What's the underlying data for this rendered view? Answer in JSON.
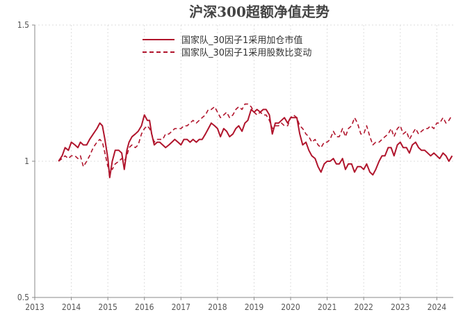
{
  "chart_data": {
    "type": "line",
    "title": "沪深300超额净值走势",
    "xlabel": "",
    "ylabel": "",
    "xlim": [
      2013.0,
      2024.45
    ],
    "ylim": [
      0.5,
      1.5
    ],
    "grid": true,
    "legend_position": "top-center",
    "x_ticks": [
      2013,
      2014,
      2015,
      2016,
      2017,
      2018,
      2019,
      2020,
      2021,
      2022,
      2023,
      2024
    ],
    "y_ticks": [
      0.5,
      1,
      1.5
    ],
    "y_tick_labels": [
      "0.5",
      "1",
      "1.5"
    ],
    "colors": {
      "series": "#b0142c",
      "axis": "#888888",
      "grid": "#dddddd"
    },
    "series": [
      {
        "name": "国家队_30因子1采用加仓市值",
        "style": "solid",
        "points": [
          [
            2013.65,
            1.0
          ],
          [
            2013.75,
            1.02
          ],
          [
            2013.83,
            1.05
          ],
          [
            2013.92,
            1.04
          ],
          [
            2014.0,
            1.07
          ],
          [
            2014.1,
            1.06
          ],
          [
            2014.18,
            1.05
          ],
          [
            2014.25,
            1.07
          ],
          [
            2014.33,
            1.06
          ],
          [
            2014.42,
            1.06
          ],
          [
            2014.5,
            1.08
          ],
          [
            2014.6,
            1.1
          ],
          [
            2014.7,
            1.12
          ],
          [
            2014.78,
            1.14
          ],
          [
            2014.85,
            1.13
          ],
          [
            2014.92,
            1.08
          ],
          [
            2015.0,
            1.01
          ],
          [
            2015.05,
            0.94
          ],
          [
            2015.12,
            1.0
          ],
          [
            2015.2,
            1.04
          ],
          [
            2015.3,
            1.04
          ],
          [
            2015.38,
            1.03
          ],
          [
            2015.45,
            0.97
          ],
          [
            2015.52,
            1.04
          ],
          [
            2015.58,
            1.07
          ],
          [
            2015.66,
            1.09
          ],
          [
            2015.75,
            1.1
          ],
          [
            2015.83,
            1.11
          ],
          [
            2015.92,
            1.13
          ],
          [
            2016.0,
            1.17
          ],
          [
            2016.08,
            1.15
          ],
          [
            2016.14,
            1.15
          ],
          [
            2016.2,
            1.1
          ],
          [
            2016.27,
            1.06
          ],
          [
            2016.35,
            1.07
          ],
          [
            2016.42,
            1.07
          ],
          [
            2016.5,
            1.06
          ],
          [
            2016.58,
            1.05
          ],
          [
            2016.67,
            1.06
          ],
          [
            2016.75,
            1.07
          ],
          [
            2016.83,
            1.08
          ],
          [
            2016.92,
            1.07
          ],
          [
            2017.0,
            1.06
          ],
          [
            2017.08,
            1.08
          ],
          [
            2017.17,
            1.08
          ],
          [
            2017.25,
            1.07
          ],
          [
            2017.33,
            1.08
          ],
          [
            2017.42,
            1.07
          ],
          [
            2017.5,
            1.08
          ],
          [
            2017.58,
            1.08
          ],
          [
            2017.67,
            1.1
          ],
          [
            2017.75,
            1.12
          ],
          [
            2017.83,
            1.14
          ],
          [
            2017.92,
            1.13
          ],
          [
            2018.0,
            1.12
          ],
          [
            2018.08,
            1.09
          ],
          [
            2018.17,
            1.12
          ],
          [
            2018.25,
            1.11
          ],
          [
            2018.33,
            1.09
          ],
          [
            2018.42,
            1.1
          ],
          [
            2018.5,
            1.12
          ],
          [
            2018.58,
            1.13
          ],
          [
            2018.67,
            1.11
          ],
          [
            2018.75,
            1.14
          ],
          [
            2018.83,
            1.15
          ],
          [
            2018.92,
            1.19
          ],
          [
            2019.0,
            1.18
          ],
          [
            2019.08,
            1.19
          ],
          [
            2019.17,
            1.18
          ],
          [
            2019.25,
            1.19
          ],
          [
            2019.33,
            1.19
          ],
          [
            2019.42,
            1.17
          ],
          [
            2019.5,
            1.1
          ],
          [
            2019.58,
            1.14
          ],
          [
            2019.67,
            1.14
          ],
          [
            2019.75,
            1.15
          ],
          [
            2019.83,
            1.16
          ],
          [
            2019.92,
            1.14
          ],
          [
            2020.0,
            1.16
          ],
          [
            2020.08,
            1.16
          ],
          [
            2020.17,
            1.16
          ],
          [
            2020.25,
            1.1
          ],
          [
            2020.33,
            1.06
          ],
          [
            2020.42,
            1.07
          ],
          [
            2020.5,
            1.04
          ],
          [
            2020.58,
            1.02
          ],
          [
            2020.67,
            1.01
          ],
          [
            2020.75,
            0.98
          ],
          [
            2020.83,
            0.96
          ],
          [
            2020.92,
            0.99
          ],
          [
            2021.0,
            1.0
          ],
          [
            2021.08,
            1.0
          ],
          [
            2021.17,
            1.01
          ],
          [
            2021.25,
            0.99
          ],
          [
            2021.33,
            0.99
          ],
          [
            2021.42,
            1.01
          ],
          [
            2021.5,
            0.97
          ],
          [
            2021.58,
            0.99
          ],
          [
            2021.67,
            0.99
          ],
          [
            2021.75,
            0.96
          ],
          [
            2021.83,
            0.98
          ],
          [
            2021.92,
            0.98
          ],
          [
            2022.0,
            0.97
          ],
          [
            2022.08,
            0.99
          ],
          [
            2022.17,
            0.96
          ],
          [
            2022.25,
            0.95
          ],
          [
            2022.33,
            0.97
          ],
          [
            2022.42,
            1.0
          ],
          [
            2022.5,
            1.02
          ],
          [
            2022.58,
            1.02
          ],
          [
            2022.67,
            1.05
          ],
          [
            2022.75,
            1.05
          ],
          [
            2022.83,
            1.02
          ],
          [
            2022.92,
            1.06
          ],
          [
            2023.0,
            1.07
          ],
          [
            2023.08,
            1.05
          ],
          [
            2023.17,
            1.05
          ],
          [
            2023.25,
            1.03
          ],
          [
            2023.33,
            1.06
          ],
          [
            2023.42,
            1.07
          ],
          [
            2023.5,
            1.05
          ],
          [
            2023.58,
            1.04
          ],
          [
            2023.67,
            1.04
          ],
          [
            2023.75,
            1.03
          ],
          [
            2023.83,
            1.02
          ],
          [
            2023.92,
            1.03
          ],
          [
            2024.0,
            1.02
          ],
          [
            2024.08,
            1.01
          ],
          [
            2024.17,
            1.03
          ],
          [
            2024.25,
            1.02
          ],
          [
            2024.33,
            1.0
          ],
          [
            2024.42,
            1.02
          ]
        ]
      },
      {
        "name": "国家队_30因子1采用股数比变动",
        "style": "dashed",
        "points": [
          [
            2013.65,
            1.0
          ],
          [
            2013.75,
            1.01
          ],
          [
            2013.83,
            1.02
          ],
          [
            2013.92,
            1.01
          ],
          [
            2014.0,
            1.02
          ],
          [
            2014.1,
            1.02
          ],
          [
            2014.18,
            1.01
          ],
          [
            2014.25,
            1.02
          ],
          [
            2014.33,
            0.98
          ],
          [
            2014.42,
            1.0
          ],
          [
            2014.5,
            1.02
          ],
          [
            2014.6,
            1.05
          ],
          [
            2014.7,
            1.07
          ],
          [
            2014.78,
            1.08
          ],
          [
            2014.85,
            1.07
          ],
          [
            2014.92,
            1.03
          ],
          [
            2015.0,
            0.98
          ],
          [
            2015.05,
            0.98
          ],
          [
            2015.12,
            0.97
          ],
          [
            2015.2,
            0.99
          ],
          [
            2015.3,
            1.0
          ],
          [
            2015.38,
            1.01
          ],
          [
            2015.45,
            1.0
          ],
          [
            2015.52,
            1.02
          ],
          [
            2015.58,
            1.05
          ],
          [
            2015.66,
            1.06
          ],
          [
            2015.75,
            1.05
          ],
          [
            2015.83,
            1.06
          ],
          [
            2015.92,
            1.1
          ],
          [
            2016.0,
            1.12
          ],
          [
            2016.08,
            1.13
          ],
          [
            2016.14,
            1.12
          ],
          [
            2016.2,
            1.1
          ],
          [
            2016.27,
            1.07
          ],
          [
            2016.35,
            1.08
          ],
          [
            2016.42,
            1.08
          ],
          [
            2016.5,
            1.08
          ],
          [
            2016.58,
            1.1
          ],
          [
            2016.67,
            1.1
          ],
          [
            2016.75,
            1.11
          ],
          [
            2016.83,
            1.12
          ],
          [
            2016.92,
            1.12
          ],
          [
            2017.0,
            1.12
          ],
          [
            2017.08,
            1.13
          ],
          [
            2017.17,
            1.13
          ],
          [
            2017.25,
            1.14
          ],
          [
            2017.33,
            1.15
          ],
          [
            2017.42,
            1.14
          ],
          [
            2017.5,
            1.15
          ],
          [
            2017.58,
            1.16
          ],
          [
            2017.67,
            1.17
          ],
          [
            2017.75,
            1.19
          ],
          [
            2017.83,
            1.19
          ],
          [
            2017.92,
            1.2
          ],
          [
            2018.0,
            1.18
          ],
          [
            2018.08,
            1.16
          ],
          [
            2018.17,
            1.17
          ],
          [
            2018.25,
            1.18
          ],
          [
            2018.33,
            1.16
          ],
          [
            2018.42,
            1.17
          ],
          [
            2018.5,
            1.19
          ],
          [
            2018.58,
            1.2
          ],
          [
            2018.67,
            1.19
          ],
          [
            2018.75,
            1.21
          ],
          [
            2018.83,
            1.21
          ],
          [
            2018.92,
            1.2
          ],
          [
            2019.0,
            1.18
          ],
          [
            2019.08,
            1.17
          ],
          [
            2019.17,
            1.18
          ],
          [
            2019.25,
            1.17
          ],
          [
            2019.33,
            1.17
          ],
          [
            2019.42,
            1.15
          ],
          [
            2019.5,
            1.12
          ],
          [
            2019.58,
            1.13
          ],
          [
            2019.67,
            1.13
          ],
          [
            2019.75,
            1.14
          ],
          [
            2019.83,
            1.13
          ],
          [
            2019.92,
            1.13
          ],
          [
            2020.0,
            1.16
          ],
          [
            2020.08,
            1.17
          ],
          [
            2020.17,
            1.16
          ],
          [
            2020.25,
            1.13
          ],
          [
            2020.33,
            1.12
          ],
          [
            2020.42,
            1.1
          ],
          [
            2020.5,
            1.09
          ],
          [
            2020.58,
            1.07
          ],
          [
            2020.67,
            1.08
          ],
          [
            2020.75,
            1.06
          ],
          [
            2020.83,
            1.05
          ],
          [
            2020.92,
            1.07
          ],
          [
            2021.0,
            1.07
          ],
          [
            2021.08,
            1.08
          ],
          [
            2021.17,
            1.11
          ],
          [
            2021.25,
            1.09
          ],
          [
            2021.33,
            1.09
          ],
          [
            2021.42,
            1.12
          ],
          [
            2021.5,
            1.09
          ],
          [
            2021.58,
            1.12
          ],
          [
            2021.67,
            1.13
          ],
          [
            2021.75,
            1.16
          ],
          [
            2021.83,
            1.14
          ],
          [
            2021.92,
            1.1
          ],
          [
            2022.0,
            1.1
          ],
          [
            2022.08,
            1.13
          ],
          [
            2022.17,
            1.09
          ],
          [
            2022.25,
            1.06
          ],
          [
            2022.33,
            1.07
          ],
          [
            2022.42,
            1.07
          ],
          [
            2022.5,
            1.08
          ],
          [
            2022.58,
            1.09
          ],
          [
            2022.67,
            1.1
          ],
          [
            2022.75,
            1.12
          ],
          [
            2022.83,
            1.09
          ],
          [
            2022.92,
            1.12
          ],
          [
            2023.0,
            1.13
          ],
          [
            2023.08,
            1.1
          ],
          [
            2023.17,
            1.11
          ],
          [
            2023.25,
            1.08
          ],
          [
            2023.33,
            1.1
          ],
          [
            2023.42,
            1.12
          ],
          [
            2023.5,
            1.1
          ],
          [
            2023.58,
            1.11
          ],
          [
            2023.67,
            1.12
          ],
          [
            2023.75,
            1.12
          ],
          [
            2023.83,
            1.13
          ],
          [
            2023.92,
            1.12
          ],
          [
            2024.0,
            1.14
          ],
          [
            2024.08,
            1.14
          ],
          [
            2024.17,
            1.16
          ],
          [
            2024.25,
            1.14
          ],
          [
            2024.33,
            1.15
          ],
          [
            2024.42,
            1.17
          ]
        ]
      }
    ]
  }
}
